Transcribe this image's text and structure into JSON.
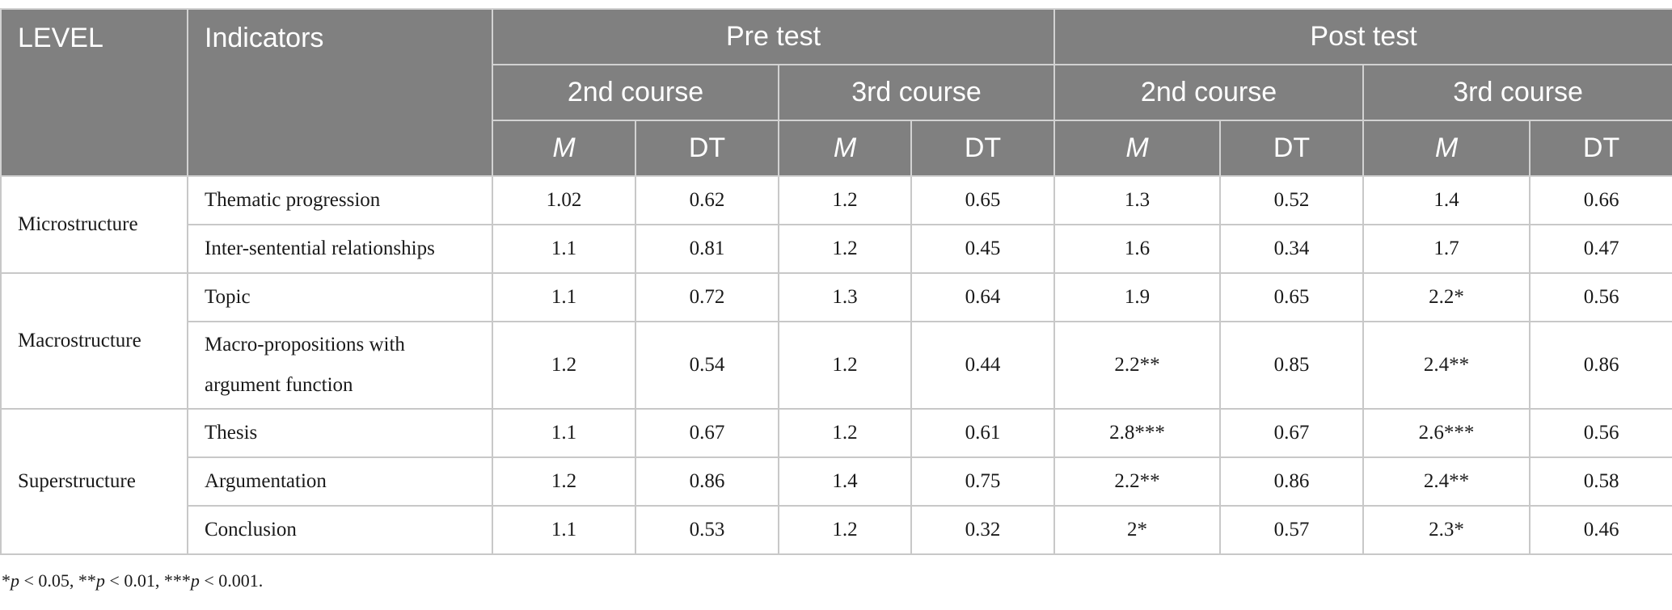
{
  "header": {
    "level": "LEVEL",
    "indicators": "Indicators",
    "pre_test": "Pre test",
    "post_test": "Post test",
    "course_2": "2nd course",
    "course_3": "3rd course",
    "m": "M",
    "dt": "DT"
  },
  "groups": [
    {
      "level": "Microstructure",
      "rows": [
        {
          "indicator": "Thematic progression",
          "pre2_m": "1.02",
          "pre2_dt": "0.62",
          "pre3_m": "1.2",
          "pre3_dt": "0.65",
          "post2_m": "1.3",
          "post2_dt": "0.52",
          "post3_m": "1.4",
          "post3_dt": "0.66"
        },
        {
          "indicator": "Inter-sentential relationships",
          "pre2_m": "1.1",
          "pre2_dt": "0.81",
          "pre3_m": "1.2",
          "pre3_dt": "0.45",
          "post2_m": "1.6",
          "post2_dt": "0.34",
          "post3_m": "1.7",
          "post3_dt": "0.47"
        }
      ]
    },
    {
      "level": "Macrostructure",
      "rows": [
        {
          "indicator": "Topic",
          "pre2_m": "1.1",
          "pre2_dt": "0.72",
          "pre3_m": "1.3",
          "pre3_dt": "0.64",
          "post2_m": "1.9",
          "post2_dt": "0.65",
          "post3_m": "2.2*",
          "post3_dt": "0.56"
        },
        {
          "indicator": "Macro-propositions with argument function",
          "pre2_m": "1.2",
          "pre2_dt": "0.54",
          "pre3_m": "1.2",
          "pre3_dt": "0.44",
          "post2_m": "2.2**",
          "post2_dt": "0.85",
          "post3_m": "2.4**",
          "post3_dt": "0.86"
        }
      ]
    },
    {
      "level": "Superstructure",
      "rows": [
        {
          "indicator": "Thesis",
          "pre2_m": "1.1",
          "pre2_dt": "0.67",
          "pre3_m": "1.2",
          "pre3_dt": "0.61",
          "post2_m": "2.8***",
          "post2_dt": "0.67",
          "post3_m": "2.6***",
          "post3_dt": "0.56"
        },
        {
          "indicator": "Argumentation",
          "pre2_m": "1.2",
          "pre2_dt": "0.86",
          "pre3_m": "1.4",
          "pre3_dt": "0.75",
          "post2_m": "2.2**",
          "post2_dt": "0.86",
          "post3_m": "2.4**",
          "post3_dt": "0.58"
        },
        {
          "indicator": "Conclusion",
          "pre2_m": "1.1",
          "pre2_dt": "0.53",
          "pre3_m": "1.2",
          "pre3_dt": "0.32",
          "post2_m": "2*",
          "post2_dt": "0.57",
          "post3_m": "2.3*",
          "post3_dt": "0.46"
        }
      ]
    }
  ],
  "footnote": {
    "parts": [
      {
        "text": "*",
        "italic": false
      },
      {
        "text": "p",
        "italic": true
      },
      {
        "text": " < 0.05, **",
        "italic": false
      },
      {
        "text": "p",
        "italic": true
      },
      {
        "text": " < 0.01, ***",
        "italic": false
      },
      {
        "text": "p",
        "italic": true
      },
      {
        "text": " < 0.001.",
        "italic": false
      }
    ]
  }
}
